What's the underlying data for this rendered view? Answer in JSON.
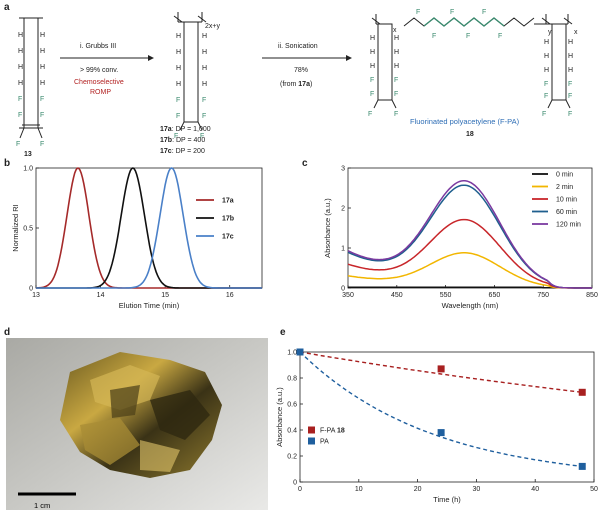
{
  "panels": {
    "a": "a",
    "b": "b",
    "c": "c",
    "d": "d",
    "e": "e"
  },
  "scheme": {
    "monomer_label": "13",
    "step1": {
      "reagent": "i. Grubbs III",
      "conversion": "> 99% conv.",
      "type_line1": "Chemoselective",
      "type_line2": "ROMP"
    },
    "polymer_subscript": "2x+y",
    "dp_lines": [
      {
        "id": "17a",
        "text": ": DP = 1,000"
      },
      {
        "id": "17b",
        "text": ": DP = 400"
      },
      {
        "id": "17c",
        "text": ": DP = 200"
      }
    ],
    "step2": {
      "reagent": "ii. Sonication",
      "yield": "78%",
      "from_prefix": "(from ",
      "from_id": "17a",
      "from_suffix": ")"
    },
    "product_name": "Fluorinated polyacetylene (F-PA)",
    "product_label": "18",
    "atom_h": "H",
    "atom_f": "F",
    "sub_x": "x",
    "sub_y": "y",
    "colors": {
      "fluorine": "#3a8a6e",
      "red": "#b22222",
      "blue": "#2d6db5"
    }
  },
  "photo": {
    "scale_label": "1 cm"
  },
  "chart_data": [
    {
      "panel": "b",
      "type": "line",
      "xlabel": "Elution Time (min)",
      "ylabel": "Normalized RI",
      "xlim": [
        13,
        16.5
      ],
      "ylim": [
        0,
        1.0
      ],
      "xticks": [
        "13",
        "14",
        "15",
        "16"
      ],
      "yticks": [
        "0",
        "0.5",
        "1.0"
      ],
      "legend_position": "right",
      "series": [
        {
          "name": "17a",
          "color": "#a52a2a",
          "peak": 13.65,
          "width": 0.17
        },
        {
          "name": "17b",
          "color": "#111111",
          "peak": 14.5,
          "width": 0.18
        },
        {
          "name": "17c",
          "color": "#4a80c8",
          "peak": 15.1,
          "width": 0.18
        }
      ]
    },
    {
      "panel": "c",
      "type": "line",
      "xlabel": "Wavelength (nm)",
      "ylabel": "Absorbance (a.u.)",
      "xlim": [
        350,
        850
      ],
      "ylim": [
        0,
        3
      ],
      "xticks": [
        "350",
        "450",
        "550",
        "650",
        "750",
        "850"
      ],
      "yticks": [
        "0",
        "1",
        "2",
        "3"
      ],
      "legend_position": "top-right",
      "series": [
        {
          "name": "0 min",
          "color": "#111111",
          "peak_value": 0.02
        },
        {
          "name": "2 min",
          "color": "#f2b600",
          "peak_value": 0.88
        },
        {
          "name": "10 min",
          "color": "#c8262a",
          "peak_value": 1.71
        },
        {
          "name": "60 min",
          "color": "#1f5f8e",
          "peak_value": 2.57
        },
        {
          "name": "120 min",
          "color": "#7b3aa0",
          "peak_value": 2.68
        }
      ]
    },
    {
      "panel": "e",
      "type": "scatter",
      "xlabel": "Time (h)",
      "ylabel": "Absorbance (a.u.)",
      "xlim": [
        0,
        50
      ],
      "ylim": [
        0,
        1.0
      ],
      "xticks": [
        "0",
        "10",
        "20",
        "30",
        "40",
        "50"
      ],
      "yticks": [
        "0",
        "0.2",
        "0.4",
        "0.6",
        "0.8",
        "1.0"
      ],
      "legend_position": "left-middle",
      "series": [
        {
          "name": "F-PA",
          "name_bold": "18",
          "color": "#a82020",
          "x": [
            0,
            24,
            48
          ],
          "y": [
            1.0,
            0.87,
            0.69
          ]
        },
        {
          "name": "PA",
          "name_bold": "",
          "color": "#1f5f9e",
          "x": [
            0,
            24,
            48
          ],
          "y": [
            1.0,
            0.38,
            0.12
          ]
        }
      ]
    }
  ]
}
